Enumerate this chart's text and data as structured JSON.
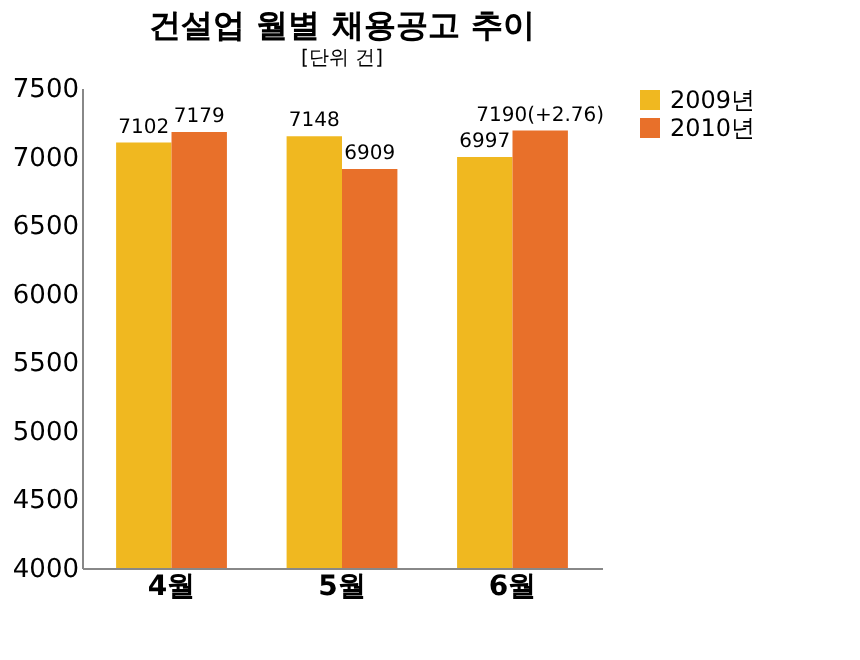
{
  "chart_data": {
    "type": "bar",
    "title": "건설업 월별 채용공고 추이",
    "subtitle": "[단위 건]",
    "categories": [
      "4월",
      "5월",
      "6월"
    ],
    "series": [
      {
        "name": "2009년",
        "color": "#f0b820",
        "values": [
          7102,
          7148,
          6997
        ],
        "value_labels": [
          "7102",
          "7148",
          "6997"
        ]
      },
      {
        "name": "2010년",
        "color": "#e8702a",
        "values": [
          7179,
          6909,
          7190
        ],
        "value_labels": [
          "7179",
          "6909",
          "7190(+2.76)"
        ]
      }
    ],
    "ylim": [
      4000,
      7500
    ],
    "yticks": [
      4000,
      4500,
      5000,
      5500,
      6000,
      6500,
      7000,
      7500
    ],
    "grid": false,
    "legend": "right"
  }
}
